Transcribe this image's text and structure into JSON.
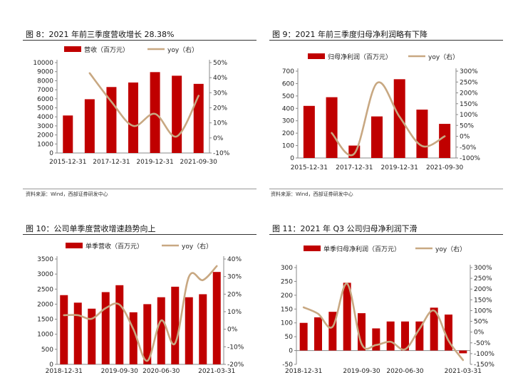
{
  "colors": {
    "bar": "#c00000",
    "line": "#c8a882",
    "axis": "#888888",
    "text": "#222222"
  },
  "source_note": "资料来源：Wind，西部证券研发中心",
  "chart_data": [
    {
      "type": "bar",
      "title": "图 8：2021 年前三季度营收增长 28.38%",
      "series": [
        {
          "name": "营收（百万元）",
          "type": "bar",
          "axis": "left",
          "values": [
            4150,
            5950,
            7300,
            7800,
            8950,
            8550,
            7650
          ]
        },
        {
          "name": "yoy（右）",
          "type": "line",
          "axis": "right",
          "values": [
            null,
            43,
            24,
            8,
            16,
            1,
            28
          ]
        }
      ],
      "x_tick_labels": [
        "2015-12-31",
        "2017-12-31",
        "2019-12-31",
        "2021-09-30"
      ],
      "y_ticks_left": [
        "0",
        "1000",
        "2000",
        "3000",
        "4000",
        "5000",
        "6000",
        "7000",
        "8000",
        "9000",
        "10000"
      ],
      "y_ticks_right": [
        "-10%",
        "0%",
        "10%",
        "20%",
        "30%",
        "40%",
        "50%"
      ],
      "ylim_left": [
        0,
        10000
      ],
      "ylim_right": [
        -10,
        50
      ],
      "legend": "top"
    },
    {
      "type": "bar",
      "title": "图 9：2021 年前三季度归母净利润略有下降",
      "series": [
        {
          "name": "归母净利润（百万元）",
          "type": "bar",
          "axis": "left",
          "values": [
            420,
            490,
            100,
            335,
            635,
            390,
            275
          ]
        },
        {
          "name": "yoy（右）",
          "type": "line",
          "axis": "right",
          "values": [
            null,
            15,
            -80,
            245,
            90,
            -45,
            0
          ]
        }
      ],
      "x_tick_labels": [
        "2015-12-31",
        "2017-12-31",
        "2019-12-31",
        "2021-09-30"
      ],
      "y_ticks_left": [
        "0",
        "100",
        "200",
        "300",
        "400",
        "500",
        "600",
        "700"
      ],
      "y_ticks_right": [
        "-100%",
        "-50%",
        "0%",
        "50%",
        "100%",
        "150%",
        "200%",
        "250%",
        "300%"
      ],
      "ylim_left": [
        0,
        700
      ],
      "ylim_right": [
        -100,
        300
      ],
      "legend": "top"
    },
    {
      "type": "bar",
      "title": "图 10：公司单季度营收增速趋势向上",
      "series": [
        {
          "name": "单季营收（百万元）",
          "type": "bar",
          "axis": "left",
          "values": [
            2300,
            2050,
            1850,
            2400,
            2630,
            1730,
            2000,
            2230,
            2580,
            2230,
            2330,
            3070
          ]
        },
        {
          "name": "yoy（右）",
          "type": "line",
          "axis": "right",
          "values": [
            8,
            8,
            6,
            12,
            14,
            0,
            -18,
            5,
            -8,
            30,
            28,
            36
          ]
        }
      ],
      "x_tick_labels": [
        "2018-12-31",
        "2019-09-30",
        "2020-06-30",
        "2021-03-31"
      ],
      "y_ticks_left": [
        "0",
        "500",
        "1000",
        "1500",
        "2000",
        "2500",
        "3000",
        "3500"
      ],
      "y_ticks_right": [
        "-20%",
        "-10%",
        "0%",
        "10%",
        "20%",
        "30%",
        "40%"
      ],
      "ylim_left": [
        0,
        3500
      ],
      "ylim_right": [
        -20,
        40
      ],
      "legend": "top"
    },
    {
      "type": "bar",
      "title": "图 11：2021 年 Q3 公司归母净利润下滑",
      "series": [
        {
          "name": "单季归母净利润（百万元）",
          "type": "bar",
          "axis": "left",
          "values": [
            100,
            120,
            140,
            245,
            135,
            80,
            105,
            105,
            105,
            155,
            130,
            -10
          ]
        },
        {
          "name": "yoy（右）",
          "type": "line",
          "axis": "right",
          "values": [
            115,
            85,
            25,
            225,
            -55,
            -60,
            -45,
            -80,
            15,
            100,
            -40,
            -130
          ]
        }
      ],
      "x_tick_labels": [
        "2018-12-31",
        "2019-09-30",
        "2020-06-30",
        "2021-03-31"
      ],
      "y_ticks_left": [
        "-50",
        "0",
        "50",
        "100",
        "150",
        "200",
        "250",
        "300"
      ],
      "y_ticks_right": [
        "-150%",
        "-100%",
        "-50%",
        "0%",
        "50%",
        "100%",
        "150%",
        "200%",
        "250%",
        "300%"
      ],
      "ylim_left": [
        -50,
        300
      ],
      "ylim_right": [
        -150,
        300
      ],
      "legend": "top"
    }
  ]
}
